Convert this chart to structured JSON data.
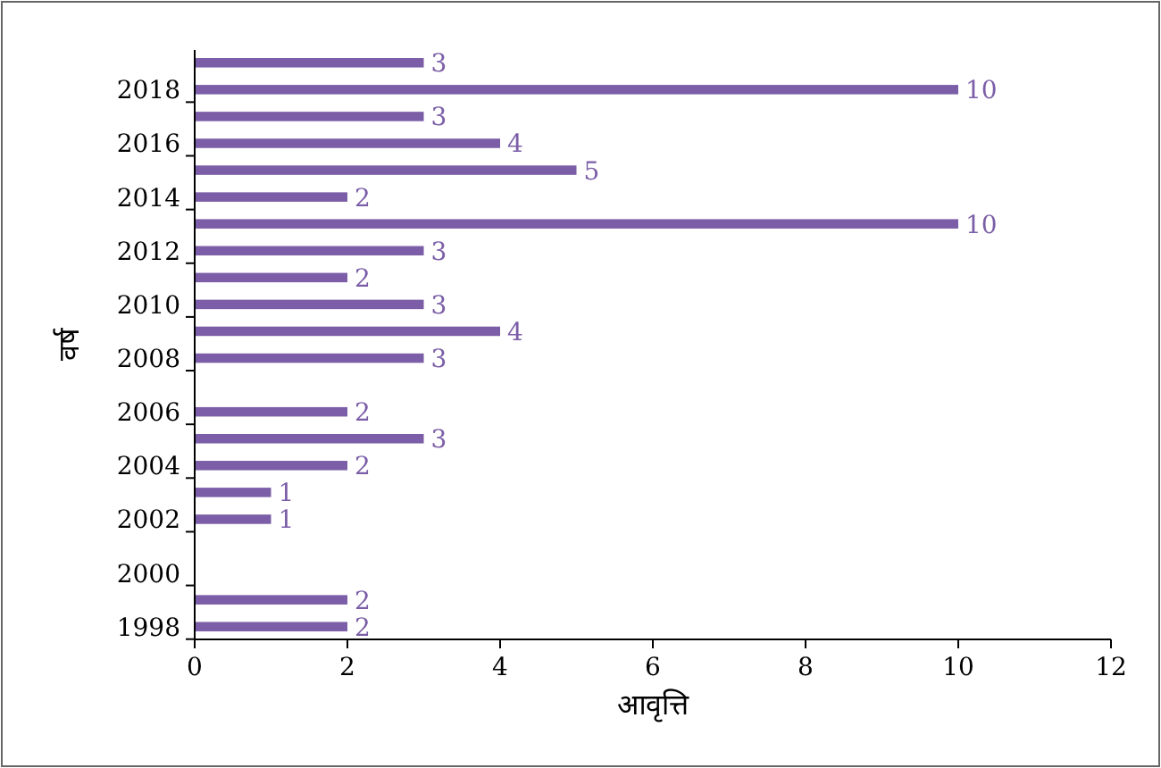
{
  "chart_data": {
    "type": "bar",
    "orientation": "horizontal",
    "xlabel": "आवृत्ति",
    "ylabel": "वर्ष",
    "categories": [
      null,
      "2018",
      null,
      "2016",
      null,
      "2014",
      null,
      "2012",
      null,
      "2010",
      null,
      "2008",
      null,
      "2006",
      null,
      "2004",
      null,
      "2002",
      null,
      "2000",
      null,
      "1998"
    ],
    "values": [
      3,
      10,
      3,
      4,
      5,
      2,
      10,
      3,
      2,
      3,
      4,
      3,
      null,
      2,
      3,
      2,
      1,
      1,
      null,
      null,
      2,
      2
    ],
    "color": "#7b5ea7",
    "xlim": [
      0,
      12
    ],
    "xticks": [
      0,
      2,
      4,
      6,
      8,
      10,
      12
    ],
    "data_labels": true,
    "grid": false
  }
}
